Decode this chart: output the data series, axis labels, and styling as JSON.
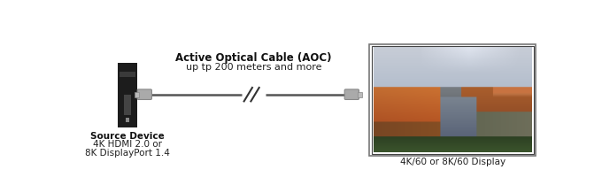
{
  "bg_color": "#ffffff",
  "title_text": "Active Optical Cable (AOC)",
  "subtitle_text": "up tp 200 meters and more",
  "source_label_lines": [
    "Source Device",
    "4K HDMI 2.0 or",
    "8K DisplayPort 1.4"
  ],
  "display_label": "4K/60 or 8K/60 Display",
  "cable_color": "#555555",
  "connector_color": "#aaaaaa",
  "connector_edge": "#888888",
  "device_color": "#1c1c1c",
  "device_detail": "#555555",
  "device_light": "#888888",
  "border_outer": "#777777",
  "border_inner": "#444444"
}
